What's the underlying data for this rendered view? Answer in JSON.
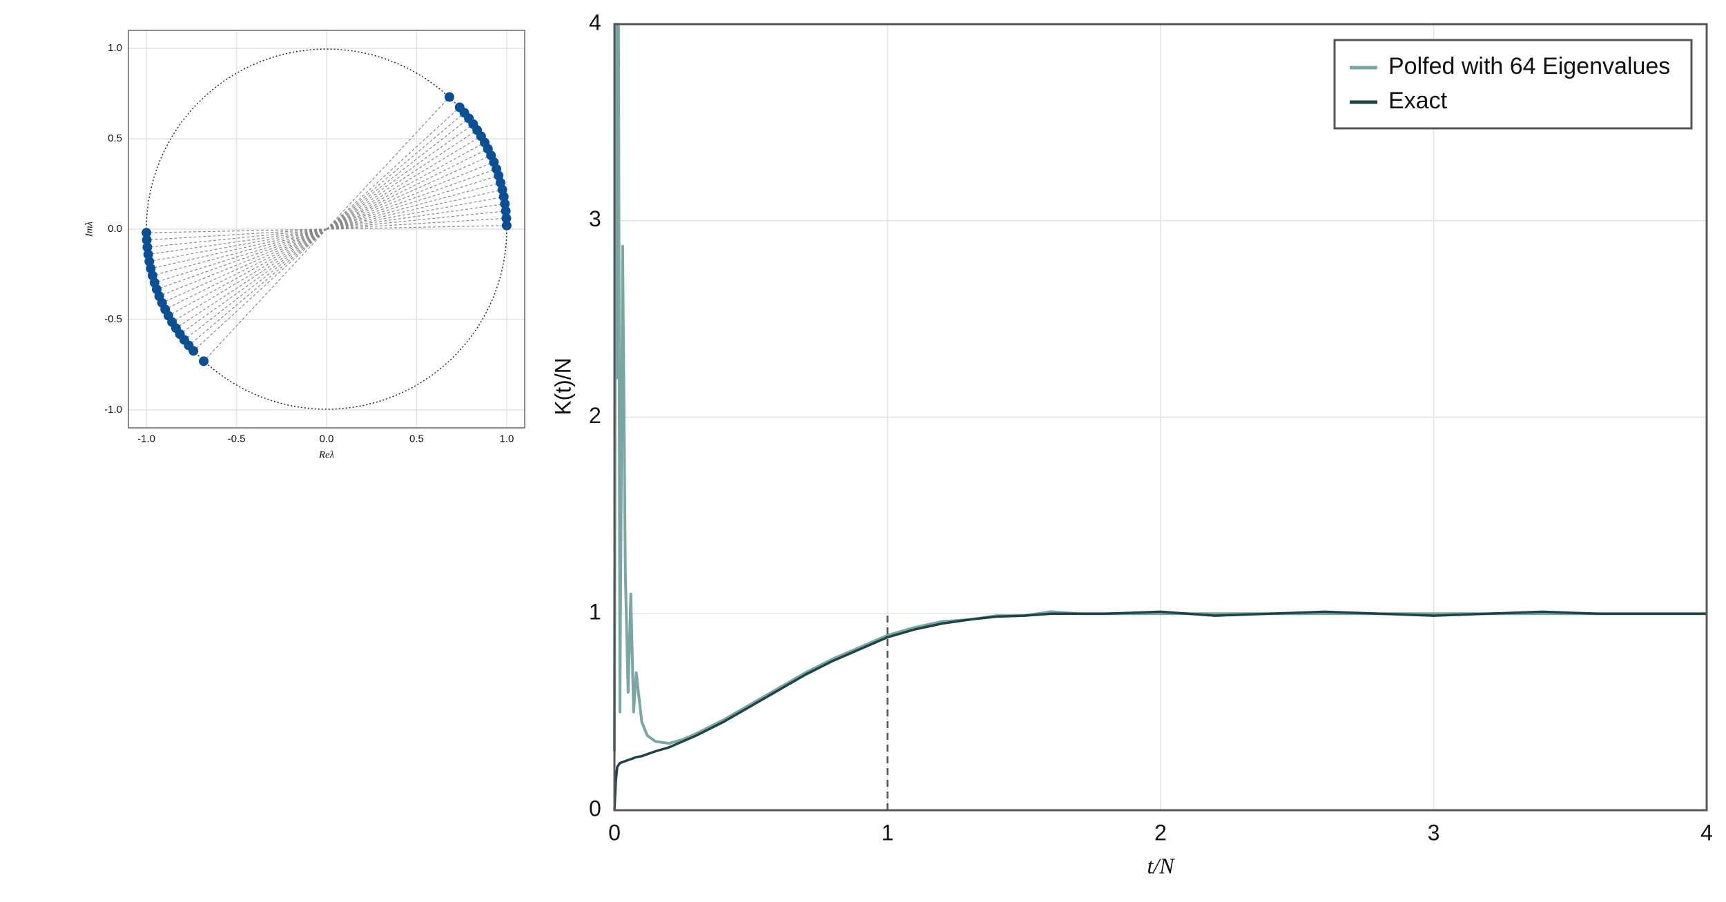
{
  "chart_data": [
    {
      "type": "scatter",
      "xlabel": "Reλ",
      "ylabel": "Imλ",
      "color": "#0b4f94",
      "grid": true,
      "xlim": [
        -1.1,
        1.1
      ],
      "ylim": [
        -1.1,
        1.1
      ],
      "xticks": [
        {
          "value": -1,
          "label": "-1.0"
        },
        -0.5,
        {
          "value": 0,
          "label": "0.0"
        },
        0.5,
        {
          "value": 1,
          "label": "1.0"
        }
      ],
      "yticks": [
        {
          "value": -1,
          "label": "-1.0"
        },
        -0.5,
        {
          "value": 0,
          "label": "0.0"
        },
        0.5,
        {
          "value": 1,
          "label": "1.0"
        }
      ],
      "x": [
        1.0,
        0.998,
        0.995,
        0.99,
        0.984,
        0.976,
        0.966,
        0.955,
        0.943,
        0.929,
        0.913,
        0.896,
        0.878,
        0.858,
        0.836,
        0.814,
        0.79,
        0.765,
        0.739,
        0.682,
        -1.0,
        -0.998,
        -0.995,
        -0.99,
        -0.984,
        -0.976,
        -0.966,
        -0.955,
        -0.943,
        -0.929,
        -0.913,
        -0.896,
        -0.878,
        -0.858,
        -0.836,
        -0.814,
        -0.79,
        -0.765,
        -0.739,
        -0.682
      ],
      "y": [
        0.02,
        0.06,
        0.1,
        0.14,
        0.179,
        0.218,
        0.257,
        0.296,
        0.333,
        0.371,
        0.408,
        0.444,
        0.479,
        0.514,
        0.548,
        0.581,
        0.613,
        0.644,
        0.674,
        0.731,
        -0.02,
        -0.06,
        -0.1,
        -0.14,
        -0.179,
        -0.218,
        -0.257,
        -0.296,
        -0.333,
        -0.371,
        -0.408,
        -0.444,
        -0.479,
        -0.514,
        -0.548,
        -0.581,
        -0.613,
        -0.644,
        -0.674,
        -0.731
      ]
    },
    {
      "type": "line",
      "xlabel": "t/N",
      "ylabel": "K(t)/N",
      "grid": true,
      "legend": "top-right",
      "reference_line_x": 1,
      "xlim": [
        0,
        4
      ],
      "ylim": [
        0,
        4
      ],
      "xticks": [
        0,
        1,
        2,
        3,
        4
      ],
      "yticks": [
        0,
        1,
        2,
        3,
        4
      ],
      "x": [
        0,
        0.005,
        0.01,
        0.015,
        0.02,
        0.03,
        0.04,
        0.05,
        0.06,
        0.07,
        0.08,
        0.1,
        0.12,
        0.15,
        0.2,
        0.25,
        0.3,
        0.4,
        0.5,
        0.6,
        0.7,
        0.8,
        0.9,
        1.0,
        1.1,
        1.2,
        1.3,
        1.4,
        1.5,
        1.6,
        1.7,
        1.8,
        2.0,
        2.2,
        2.4,
        2.6,
        2.8,
        3.0,
        3.2,
        3.4,
        3.6,
        3.8,
        4.0
      ],
      "series": [
        {
          "name": "Polfed with 64 Eigenvalues",
          "color": "#7aa7a2",
          "values": [
            0.3,
            4,
            2.2,
            4,
            0.5,
            2.87,
            1.2,
            0.6,
            1.1,
            0.5,
            0.7,
            0.45,
            0.38,
            0.35,
            0.34,
            0.36,
            0.39,
            0.46,
            0.54,
            0.62,
            0.7,
            0.77,
            0.83,
            0.89,
            0.93,
            0.96,
            0.97,
            0.99,
            0.99,
            1.01,
            1.0,
            1.0,
            1.0,
            1.0,
            1.0,
            1.0,
            1.0,
            1.0,
            1.0,
            1.0,
            1.0,
            1.0,
            1.0
          ]
        },
        {
          "name": "Exact",
          "color": "#1f4247",
          "values": [
            0,
            0.15,
            0.22,
            0.23,
            0.24,
            0.245,
            0.25,
            0.255,
            0.26,
            0.265,
            0.27,
            0.275,
            0.285,
            0.3,
            0.32,
            0.35,
            0.38,
            0.45,
            0.53,
            0.61,
            0.69,
            0.76,
            0.82,
            0.88,
            0.92,
            0.95,
            0.97,
            0.985,
            0.99,
            1.0,
            1.0,
            1.0,
            1.01,
            0.99,
            1.0,
            1.01,
            1.0,
            0.99,
            1.0,
            1.01,
            1.0,
            1.0,
            1.0
          ]
        }
      ]
    }
  ]
}
